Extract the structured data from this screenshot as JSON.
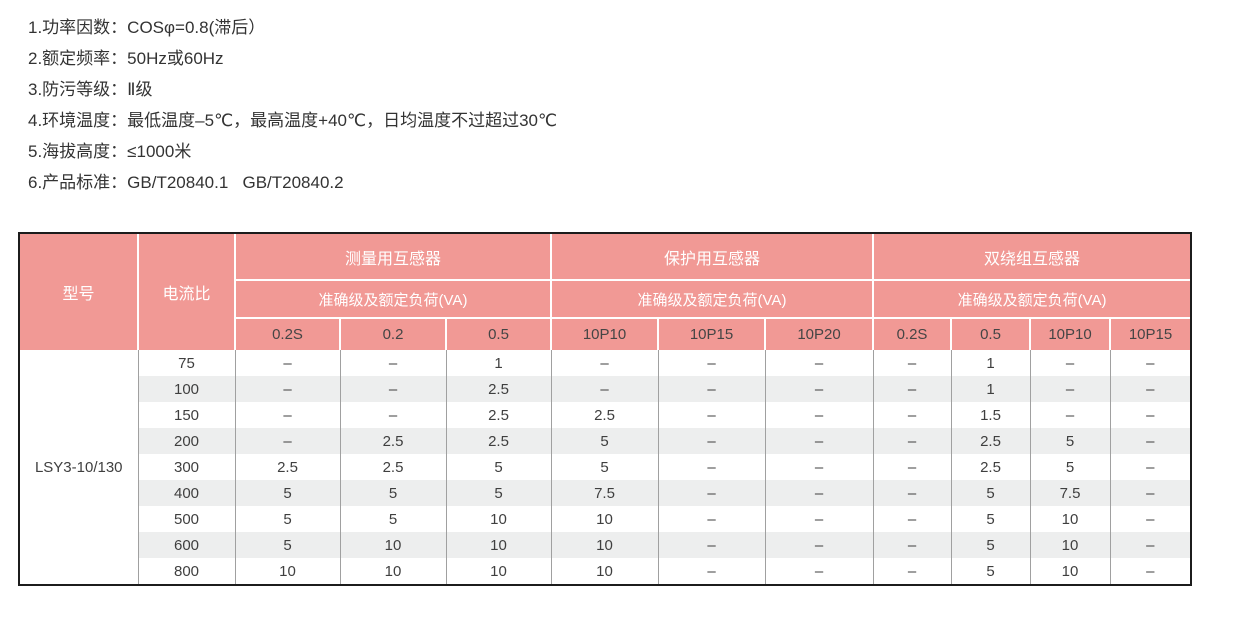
{
  "notes": {
    "items": [
      "1.功率因数：COSφ=0.8(滞后）",
      "2.额定频率：50Hz或60Hz",
      "3.防污等级：Ⅱ级",
      "4.环境温度：最低温度–5℃，最高温度+40℃，日均温度不过超过30℃",
      "5.海拔高度：≤1000米",
      "6.产品标准：GB/T20840.1   GB/T20840.2"
    ]
  },
  "table": {
    "columns": {
      "model": "型号",
      "ratio": "电流比"
    },
    "groups": [
      {
        "title": "测量用互感器",
        "subtitle": "准确级及额定负荷(VA)",
        "cols": [
          "0.2S",
          "0.2",
          "0.5"
        ]
      },
      {
        "title": "保护用互感器",
        "subtitle": "准确级及额定负荷(VA)",
        "cols": [
          "10P10",
          "10P15",
          "10P20"
        ]
      },
      {
        "title": "双绕组互感器",
        "subtitle": "准确级及额定负荷(VA)",
        "cols": [
          "0.2S",
          "0.5",
          "10P10",
          "10P15"
        ]
      }
    ],
    "model": "LSY3-10/130",
    "rows": [
      {
        "ratio": "75",
        "values": [
          "–",
          "–",
          "1",
          "–",
          "–",
          "–",
          "–",
          "1",
          "–",
          "–"
        ]
      },
      {
        "ratio": "100",
        "values": [
          "–",
          "–",
          "2.5",
          "–",
          "–",
          "–",
          "–",
          "1",
          "–",
          "–"
        ]
      },
      {
        "ratio": "150",
        "values": [
          "–",
          "–",
          "2.5",
          "2.5",
          "–",
          "–",
          "–",
          "1.5",
          "–",
          "–"
        ]
      },
      {
        "ratio": "200",
        "values": [
          "–",
          "2.5",
          "2.5",
          "5",
          "–",
          "–",
          "–",
          "2.5",
          "5",
          "–"
        ]
      },
      {
        "ratio": "300",
        "values": [
          "2.5",
          "2.5",
          "5",
          "5",
          "–",
          "–",
          "–",
          "2.5",
          "5",
          "–"
        ]
      },
      {
        "ratio": "400",
        "values": [
          "5",
          "5",
          "5",
          "7.5",
          "–",
          "–",
          "–",
          "5",
          "7.5",
          "–"
        ]
      },
      {
        "ratio": "500",
        "values": [
          "5",
          "5",
          "10",
          "10",
          "–",
          "–",
          "–",
          "5",
          "10",
          "–"
        ]
      },
      {
        "ratio": "600",
        "values": [
          "5",
          "10",
          "10",
          "10",
          "–",
          "–",
          "–",
          "5",
          "10",
          "–"
        ]
      },
      {
        "ratio": "800",
        "values": [
          "10",
          "10",
          "10",
          "10",
          "–",
          "–",
          "–",
          "5",
          "10",
          "–"
        ]
      }
    ],
    "colors": {
      "header_pink": "#F19995",
      "header_text": "#FFFFFF",
      "subheader_text": "#454545",
      "body_text": "#3F3F3F",
      "stripe": "#EDEEEE",
      "grid_line": "#A0A0A0",
      "outer_border": "#1C1C1C"
    }
  }
}
